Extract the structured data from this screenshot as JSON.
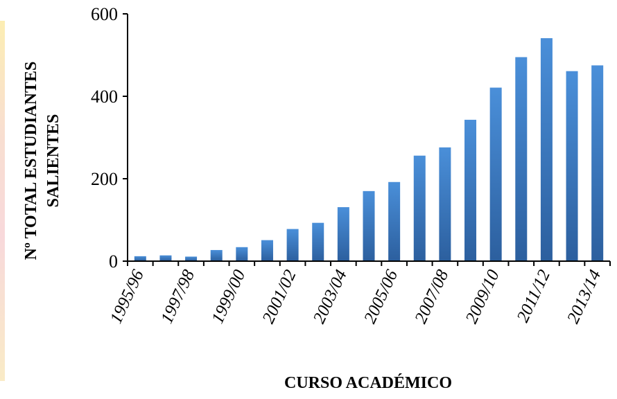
{
  "chart_data": {
    "type": "bar",
    "title": "",
    "xlabel": "CURSO ACADÉMICO",
    "ylabel_lines": [
      "Nº TOTAL ESTUDIANTES",
      "SALIENTES"
    ],
    "ylim": [
      0,
      600
    ],
    "yticks": [
      "0",
      "200",
      "400",
      "600"
    ],
    "categories": [
      "1995/96",
      "1996/97",
      "1997/98",
      "1998/99",
      "1999/00",
      "2000/01",
      "2001/02",
      "2002/03",
      "2003/04",
      "2004/05",
      "2005/06",
      "2006/07",
      "2007/08",
      "2008/09",
      "2009/10",
      "2010/11",
      "2011/12",
      "2012/13",
      "2013/14"
    ],
    "tick_labels_shown": [
      "1995/96",
      "",
      "1997/98",
      "",
      "1999/00",
      "",
      "2001/02",
      "",
      "2003/04",
      "",
      "2005/06",
      "",
      "2007/08",
      "",
      "2009/10",
      "",
      "2011/12",
      "",
      "2013/14"
    ],
    "values": [
      12,
      14,
      11,
      27,
      34,
      51,
      78,
      93,
      131,
      170,
      192,
      256,
      276,
      343,
      421,
      495,
      541,
      461,
      475
    ],
    "grid": false,
    "legend": "none",
    "colors": {
      "bar_top": "#4a8fd9",
      "bar_bottom": "#2c5f9e",
      "axis": "#000000"
    }
  }
}
